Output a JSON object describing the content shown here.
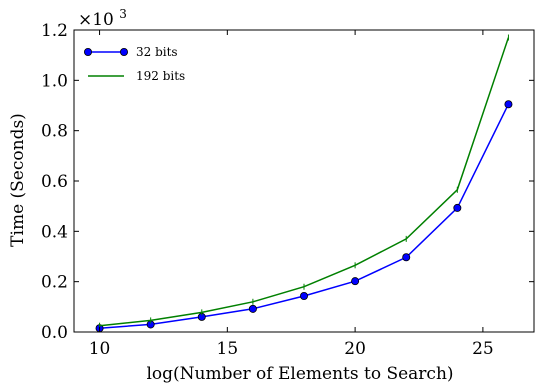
{
  "chart_data": {
    "type": "line",
    "xlabel": "log(Number of Elements to Search)",
    "ylabel": "Time (Seconds)",
    "y_multiplier": {
      "base": "×10",
      "exponent": "3"
    },
    "xlim": [
      9,
      27
    ],
    "ylim": [
      0.0,
      1.2
    ],
    "x_ticks": [
      10,
      15,
      20,
      25
    ],
    "x_tick_labels": [
      "10",
      "15",
      "20",
      "25"
    ],
    "y_ticks": [
      0.0,
      0.2,
      0.4,
      0.6,
      0.8,
      1.0,
      1.2
    ],
    "y_tick_labels": [
      "0.0",
      "0.2",
      "0.4",
      "0.6",
      "0.8",
      "1.0",
      "1.2"
    ],
    "grid": false,
    "legend_position": "top-left",
    "series": [
      {
        "name": "32 bits",
        "color": "#0000ff",
        "marker": "circle",
        "x": [
          10,
          12,
          14,
          16,
          18,
          20,
          22,
          24,
          26
        ],
        "y": [
          0.015,
          0.03,
          0.06,
          0.092,
          0.143,
          0.202,
          0.297,
          0.493,
          0.905
        ]
      },
      {
        "name": "192 bits",
        "color": "#008000",
        "marker": "tick",
        "x": [
          10,
          12,
          14,
          16,
          18,
          20,
          22,
          24,
          26
        ],
        "y": [
          0.025,
          0.046,
          0.078,
          0.12,
          0.18,
          0.265,
          0.37,
          0.565,
          1.17
        ]
      }
    ]
  }
}
